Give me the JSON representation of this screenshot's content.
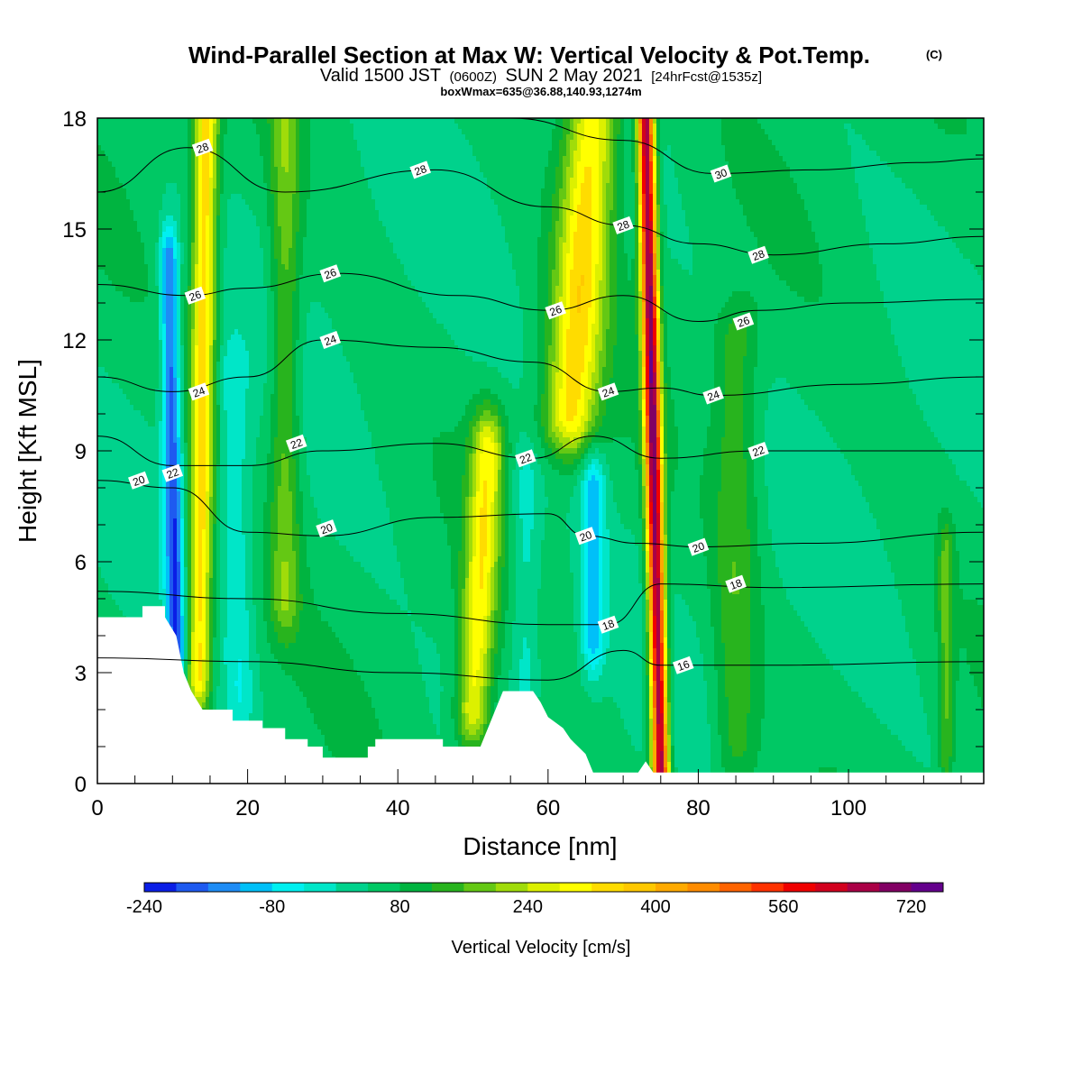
{
  "title": {
    "main": "Wind-Parallel Section at Max W: Vertical Velocity & Pot.Temp.",
    "copyright": "(C)",
    "valid_prefix": "Valid 1500 JST",
    "valid_utc": "(0600Z)",
    "valid_date": "SUN 2 May 2021",
    "forecast": "[24hrFcst@1535z]",
    "box_info": "boxWmax=635@36.88,140.93,1274m"
  },
  "chart_data": {
    "type": "heatmap",
    "xlabel": "Distance [nm]",
    "ylabel": "Height [Kft MSL]",
    "xlim": [
      0,
      118
    ],
    "ylim": [
      0,
      18
    ],
    "x_ticks": [
      0,
      20,
      40,
      60,
      80,
      100
    ],
    "y_ticks": [
      0,
      3,
      6,
      9,
      12,
      15,
      18
    ],
    "colorbar": {
      "title": "Vertical Velocity [cm/s]",
      "min": -240,
      "step": 40,
      "labels": [
        "-240",
        "-80",
        "80",
        "240",
        "400",
        "560",
        "720"
      ],
      "colors": [
        "#0a1ee6",
        "#1e5af0",
        "#1e8cf5",
        "#00c0f8",
        "#00f0f0",
        "#00e6c8",
        "#00d28c",
        "#00c864",
        "#00b440",
        "#28b41e",
        "#64c814",
        "#a0dc0a",
        "#dcf000",
        "#ffff00",
        "#ffdc00",
        "#ffc800",
        "#ffaa00",
        "#ff8c00",
        "#ff6400",
        "#ff3200",
        "#f00000",
        "#d2001e",
        "#aa0046",
        "#820064",
        "#64008c"
      ]
    },
    "velocity_features": [
      {
        "name": "updraft",
        "x": 13.5,
        "x_top": 14.5,
        "peak": 300,
        "width": 1.6,
        "ybot": 3,
        "ytop": 18
      },
      {
        "name": "downdraft",
        "x": 10.5,
        "x_top": 9.5,
        "peak": -230,
        "width": 1.2,
        "ybot": 3.5,
        "ytop": 14
      },
      {
        "name": "downdraft",
        "x": 19,
        "x_top": 18,
        "peak": -80,
        "width": 2,
        "ybot": 2.5,
        "ytop": 11
      },
      {
        "name": "updraft",
        "x": 25,
        "x_top": 25,
        "peak": 130,
        "width": 2,
        "ybot": 5,
        "ytop": 18
      },
      {
        "name": "updraft",
        "x": 50,
        "x_top": 52,
        "peak": 240,
        "width": 2.2,
        "ybot": 2,
        "ytop": 9
      },
      {
        "name": "updraft",
        "x": 63,
        "x_top": 66,
        "peak": 280,
        "width": 3.5,
        "ybot": 10,
        "ytop": 18
      },
      {
        "name": "downdraft",
        "x": 66,
        "x_top": 66,
        "peak": -150,
        "width": 1.6,
        "ybot": 4,
        "ytop": 8
      },
      {
        "name": "downdraft",
        "x": 57,
        "x_top": 57,
        "peak": -80,
        "width": 2,
        "ybot": 3,
        "ytop": 8
      },
      {
        "name": "updraft",
        "x": 75,
        "x_top": 73,
        "peak": 640,
        "width": 1.1,
        "ybot": 0.3,
        "ytop": 18
      },
      {
        "name": "updraft",
        "x": 85,
        "x_top": 85,
        "peak": 100,
        "width": 3,
        "ybot": 1,
        "ytop": 12
      },
      {
        "name": "updraft",
        "x": 113,
        "x_top": 113,
        "peak": 110,
        "width": 1,
        "ybot": 1,
        "ytop": 6
      }
    ],
    "terrain": [
      [
        0,
        4.5
      ],
      [
        6,
        4.5
      ],
      [
        6,
        4.8
      ],
      [
        9,
        4.8
      ],
      [
        9,
        4.5
      ],
      [
        10.5,
        4
      ],
      [
        11,
        3.5
      ],
      [
        11.5,
        3
      ],
      [
        12.5,
        2.5
      ],
      [
        14,
        2
      ],
      [
        18,
        2
      ],
      [
        18,
        1.7
      ],
      [
        22,
        1.7
      ],
      [
        22,
        1.5
      ],
      [
        25,
        1.5
      ],
      [
        25,
        1.2
      ],
      [
        28,
        1.2
      ],
      [
        28,
        1
      ],
      [
        30,
        1
      ],
      [
        30,
        0.7
      ],
      [
        32,
        0.7
      ],
      [
        35,
        0.7
      ],
      [
        36,
        0.7
      ],
      [
        36,
        1
      ],
      [
        37,
        1
      ],
      [
        37,
        1.2
      ],
      [
        40,
        1.2
      ],
      [
        44,
        1.2
      ],
      [
        46,
        1.2
      ],
      [
        46,
        1
      ],
      [
        51,
        1
      ],
      [
        52,
        1.5
      ],
      [
        53,
        2
      ],
      [
        54,
        2.5
      ],
      [
        58,
        2.5
      ],
      [
        59,
        2.2
      ],
      [
        60,
        1.8
      ],
      [
        62,
        1.5
      ],
      [
        63,
        1.2
      ],
      [
        64,
        1
      ],
      [
        65,
        0.8
      ],
      [
        66,
        0.3
      ],
      [
        72,
        0.3
      ],
      [
        73,
        0.6
      ],
      [
        74,
        0.3
      ],
      [
        118,
        0.3
      ]
    ],
    "contour_levels": [
      {
        "level": 16,
        "label": "16",
        "points": [
          [
            0,
            3.4
          ],
          [
            20,
            3.3
          ],
          [
            40,
            3.0
          ],
          [
            60,
            2.8
          ],
          [
            70,
            3.6
          ],
          [
            75,
            3.2
          ],
          [
            90,
            3.2
          ],
          [
            118,
            3.3
          ]
        ]
      },
      {
        "level": 18,
        "label": "18",
        "points": [
          [
            0,
            5.2
          ],
          [
            20,
            5.0
          ],
          [
            40,
            4.6
          ],
          [
            60,
            4.3
          ],
          [
            68,
            4.3
          ],
          [
            75,
            5.4
          ],
          [
            90,
            5.3
          ],
          [
            118,
            5.4
          ]
        ]
      },
      {
        "level": 20,
        "label": "20",
        "points": [
          [
            0,
            8.2
          ],
          [
            10,
            8.0
          ],
          [
            20,
            6.8
          ],
          [
            30,
            6.7
          ],
          [
            45,
            7.2
          ],
          [
            60,
            7.3
          ],
          [
            65,
            6.7
          ],
          [
            72,
            6.5
          ],
          [
            80,
            6.4
          ],
          [
            95,
            6.5
          ],
          [
            118,
            6.8
          ]
        ]
      },
      {
        "level": 22,
        "label": "22",
        "points": [
          [
            0,
            9.4
          ],
          [
            10,
            8.6
          ],
          [
            20,
            8.6
          ],
          [
            30,
            9.0
          ],
          [
            45,
            9.2
          ],
          [
            58,
            8.8
          ],
          [
            66,
            9.4
          ],
          [
            75,
            8.8
          ],
          [
            88,
            9.0
          ],
          [
            105,
            9.0
          ],
          [
            118,
            9.0
          ]
        ]
      },
      {
        "level": 24,
        "label": "24",
        "points": [
          [
            0,
            11.0
          ],
          [
            10,
            10.6
          ],
          [
            20,
            11.0
          ],
          [
            30,
            12.0
          ],
          [
            45,
            11.8
          ],
          [
            58,
            11.4
          ],
          [
            68,
            10.6
          ],
          [
            75,
            10.7
          ],
          [
            82,
            10.5
          ],
          [
            100,
            10.8
          ],
          [
            118,
            11.0
          ]
        ]
      },
      {
        "level": 26,
        "label": "26",
        "points": [
          [
            0,
            13.5
          ],
          [
            12,
            13.2
          ],
          [
            20,
            13.4
          ],
          [
            32,
            13.8
          ],
          [
            48,
            13.2
          ],
          [
            60,
            12.8
          ],
          [
            70,
            13.2
          ],
          [
            80,
            12.5
          ],
          [
            88,
            12.8
          ],
          [
            100,
            13.0
          ],
          [
            118,
            13.1
          ]
        ]
      },
      {
        "level": 28,
        "label": "28",
        "points": [
          [
            0,
            16.0
          ],
          [
            12,
            17.2
          ],
          [
            25,
            16.0
          ],
          [
            45,
            16.6
          ],
          [
            60,
            15.6
          ],
          [
            70,
            15.1
          ],
          [
            80,
            14.6
          ],
          [
            90,
            14.3
          ],
          [
            105,
            14.6
          ],
          [
            118,
            14.8
          ]
        ]
      },
      {
        "level": 30,
        "label": "30",
        "points": [
          [
            55,
            18.0
          ],
          [
            70,
            17.4
          ],
          [
            82,
            16.5
          ],
          [
            95,
            16.6
          ],
          [
            110,
            16.8
          ],
          [
            118,
            16.9
          ]
        ]
      }
    ],
    "contour_label_positions": [
      {
        "label": "28",
        "x": 14,
        "y": 17.2
      },
      {
        "label": "28",
        "x": 43,
        "y": 16.6
      },
      {
        "label": "30",
        "x": 83,
        "y": 16.5
      },
      {
        "label": "28",
        "x": 70,
        "y": 15.1
      },
      {
        "label": "28",
        "x": 88,
        "y": 14.3
      },
      {
        "label": "26",
        "x": 13,
        "y": 13.2
      },
      {
        "label": "26",
        "x": 31,
        "y": 13.8
      },
      {
        "label": "26",
        "x": 61,
        "y": 12.8
      },
      {
        "label": "26",
        "x": 86,
        "y": 12.5
      },
      {
        "label": "24",
        "x": 31,
        "y": 12.0
      },
      {
        "label": "24",
        "x": 13.5,
        "y": 10.6
      },
      {
        "label": "24",
        "x": 68,
        "y": 10.6
      },
      {
        "label": "24",
        "x": 82,
        "y": 10.5
      },
      {
        "label": "22",
        "x": 26.5,
        "y": 9.2
      },
      {
        "label": "22",
        "x": 57,
        "y": 8.8
      },
      {
        "label": "22",
        "x": 88,
        "y": 9.0
      },
      {
        "label": "22",
        "x": 10,
        "y": 8.4
      },
      {
        "label": "20",
        "x": 5.5,
        "y": 8.2
      },
      {
        "label": "20",
        "x": 30.5,
        "y": 6.9
      },
      {
        "label": "20",
        "x": 65,
        "y": 6.7
      },
      {
        "label": "20",
        "x": 80,
        "y": 6.4
      },
      {
        "label": "18",
        "x": 85,
        "y": 5.4
      },
      {
        "label": "18",
        "x": 68,
        "y": 4.3
      },
      {
        "label": "16",
        "x": 78,
        "y": 3.2
      }
    ]
  }
}
